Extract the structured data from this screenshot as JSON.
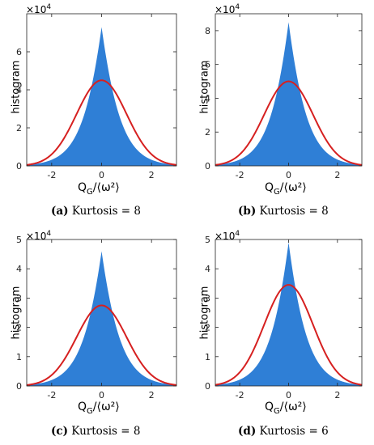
{
  "chart_data": [
    {
      "type": "area",
      "caption_letter": "(a)",
      "caption_text": "Kurtosis = 8",
      "ylabel": "histogram",
      "y_multiplier": "×10",
      "y_multiplier_exp": "4",
      "xlabel_main": "Q",
      "xlabel_sub": "G",
      "xlabel_rest": "/⟨ω²⟩",
      "xlim": [
        -3,
        3
      ],
      "ylim": [
        0,
        8
      ],
      "xticks": [
        "-2",
        "0",
        "2"
      ],
      "yticks": [
        "0",
        "2",
        "4",
        "6"
      ],
      "histogram_peak": 7.3,
      "gaussian_peak": 4.5,
      "histogram_color": "#2f7fd6",
      "gaussian_color": "#d62020"
    },
    {
      "type": "area",
      "caption_letter": "(b)",
      "caption_text": "Kurtosis = 8",
      "ylabel": "histogram",
      "y_multiplier": "×10",
      "y_multiplier_exp": "4",
      "xlabel_main": "Q",
      "xlabel_sub": "G",
      "xlabel_rest": "/⟨ω²⟩",
      "xlim": [
        -3,
        3
      ],
      "ylim": [
        0,
        9
      ],
      "xticks": [
        "-2",
        "0",
        "2"
      ],
      "yticks": [
        "0",
        "2",
        "4",
        "6",
        "8"
      ],
      "histogram_peak": 8.5,
      "gaussian_peak": 5.0,
      "histogram_color": "#2f7fd6",
      "gaussian_color": "#d62020"
    },
    {
      "type": "area",
      "caption_letter": "(c)",
      "caption_text": "Kurtosis = 8",
      "ylabel": "histogram",
      "y_multiplier": "×10",
      "y_multiplier_exp": "4",
      "xlabel_main": "Q",
      "xlabel_sub": "G",
      "xlabel_rest": "/⟨ω²⟩",
      "xlim": [
        -3,
        3
      ],
      "ylim": [
        0,
        5
      ],
      "xticks": [
        "-2",
        "0",
        "2"
      ],
      "yticks": [
        "0",
        "1",
        "2",
        "3",
        "4",
        "5"
      ],
      "histogram_peak": 4.6,
      "gaussian_peak": 2.75,
      "histogram_color": "#2f7fd6",
      "gaussian_color": "#d62020"
    },
    {
      "type": "area",
      "caption_letter": "(d)",
      "caption_text": "Kurtosis = 6",
      "ylabel": "histogram",
      "y_multiplier": "×10",
      "y_multiplier_exp": "4",
      "xlabel_main": "Q",
      "xlabel_sub": "G",
      "xlabel_rest": "/⟨ω²⟩",
      "xlim": [
        -3,
        3
      ],
      "ylim": [
        0,
        5
      ],
      "xticks": [
        "-2",
        "0",
        "2"
      ],
      "yticks": [
        "0",
        "1",
        "2",
        "3",
        "4",
        "5"
      ],
      "histogram_peak": 4.9,
      "gaussian_peak": 3.45,
      "histogram_color": "#2f7fd6",
      "gaussian_color": "#d62020"
    }
  ]
}
